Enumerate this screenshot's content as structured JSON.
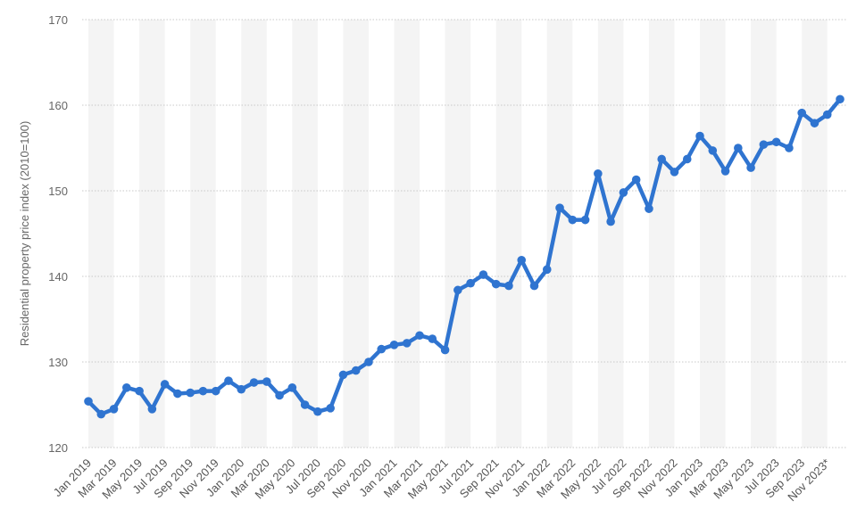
{
  "chart_data": {
    "type": "line",
    "title": "",
    "xlabel": "",
    "ylabel": "Residential property price index (2010=100)",
    "ylim": [
      120,
      170
    ],
    "yticks": [
      120,
      130,
      140,
      150,
      160,
      170
    ],
    "grid": true,
    "legend": "none",
    "x_tick_labels": [
      "Jan 2019",
      "Mar 2019",
      "May 2019",
      "Jul 2019",
      "Sep 2019",
      "Nov 2019",
      "Jan 2020",
      "Mar 2020",
      "May 2020",
      "Jul 2020",
      "Sep 2020",
      "Nov 2020",
      "Jan 2021",
      "Mar 2021",
      "May 2021",
      "Jul 2021",
      "Sep 2021",
      "Nov 2021",
      "Jan 2022",
      "Mar 2022",
      "May 2022",
      "Jul 2022",
      "Sep 2022",
      "Nov 2022",
      "Jan 2023",
      "Mar 2023",
      "May 2023",
      "Jul 2023",
      "Sep 2023",
      "Nov 2023*"
    ],
    "colors": {
      "series": "#2f74d0",
      "band": "#f4f4f4",
      "grid": "#c8c8c8"
    },
    "series": [
      {
        "values": [
          125.4,
          123.9,
          124.5,
          127.0,
          126.6,
          124.5,
          127.4,
          126.3,
          126.4,
          126.6,
          126.6,
          127.8,
          126.8,
          127.6,
          127.7,
          126.1,
          127.0,
          125.0,
          124.2,
          124.6,
          128.5,
          129.0,
          130.0,
          131.5,
          132.0,
          132.2,
          133.1,
          132.7,
          131.4,
          138.4,
          139.2,
          140.2,
          139.1,
          138.9,
          141.9,
          138.9,
          140.8,
          148.0,
          146.6,
          146.6,
          152.0,
          146.4,
          149.8,
          151.3,
          147.9,
          153.7,
          152.2,
          153.7,
          156.4,
          154.7,
          152.3,
          155.0,
          152.7,
          155.4,
          155.7,
          155.0,
          159.1,
          157.9,
          158.9,
          160.7
        ]
      }
    ]
  }
}
